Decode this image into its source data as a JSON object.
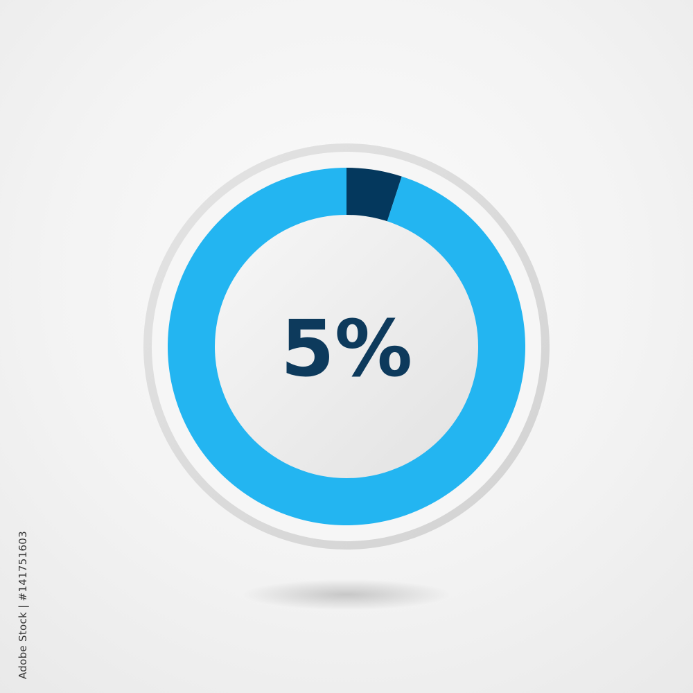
{
  "chart_data": {
    "type": "pie",
    "style": "donut",
    "slices": [
      {
        "value": 5,
        "color": "#04385d"
      },
      {
        "value": 95,
        "color": "#23b5f1"
      }
    ],
    "center_label": "5%",
    "center_label_color": "#0d3a5c"
  },
  "watermark": {
    "text": "Adobe Stock",
    "credit": "Adobe Stock | #141751603"
  }
}
